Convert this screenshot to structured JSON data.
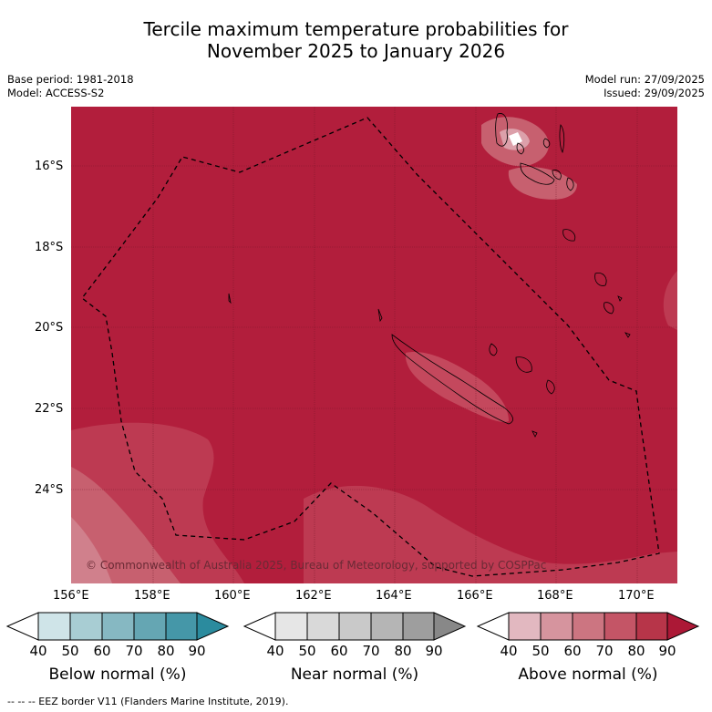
{
  "title": {
    "line1": "Tercile maximum temperature probabilities for",
    "line2": "November 2025 to January 2026"
  },
  "meta": {
    "base_period": "Base period: 1981-2018",
    "model": "Model: ACCESS-S2",
    "model_run": "Model run: 27/09/2025",
    "issued": "Issued: 29/09/2025"
  },
  "axes": {
    "lat_labels": [
      "16°S",
      "18°S",
      "20°S",
      "22°S",
      "24°S"
    ],
    "lon_labels": [
      "156°E",
      "158°E",
      "160°E",
      "162°E",
      "164°E",
      "166°E",
      "168°E",
      "170°E"
    ]
  },
  "copyright": "© Commonwealth of Australia 2025, Bureau of Meteorology, supported by COSPPac",
  "colorbars": [
    {
      "label": "Below normal (%)",
      "ticks": [
        "40",
        "50",
        "60",
        "70",
        "80",
        "90"
      ],
      "colors": [
        "#ffffff",
        "#cfe4e8",
        "#a8cdd3",
        "#86b8c2",
        "#65a6b3",
        "#4597a8",
        "#2b8b9e"
      ]
    },
    {
      "label": "Near normal (%)",
      "ticks": [
        "40",
        "50",
        "60",
        "70",
        "80",
        "90"
      ],
      "colors": [
        "#ffffff",
        "#e6e6e6",
        "#d9d9d9",
        "#c9c9c9",
        "#b5b5b5",
        "#9e9e9e",
        "#888888"
      ]
    },
    {
      "label": "Above normal (%)",
      "ticks": [
        "40",
        "50",
        "60",
        "70",
        "80",
        "90"
      ],
      "colors": [
        "#ffffff",
        "#e2b8c0",
        "#d6949e",
        "#cc7581",
        "#c45566",
        "#b73549",
        "#ac1836"
      ]
    }
  ],
  "footnote": "--  --  -- EEZ border V11 (Flanders Marine Institute, 2019).",
  "map_colors": {
    "dominant": "#b21e3c",
    "lighter": "#bd3a52",
    "lightest": "#c7606f",
    "island_light": "#dca0aa"
  }
}
